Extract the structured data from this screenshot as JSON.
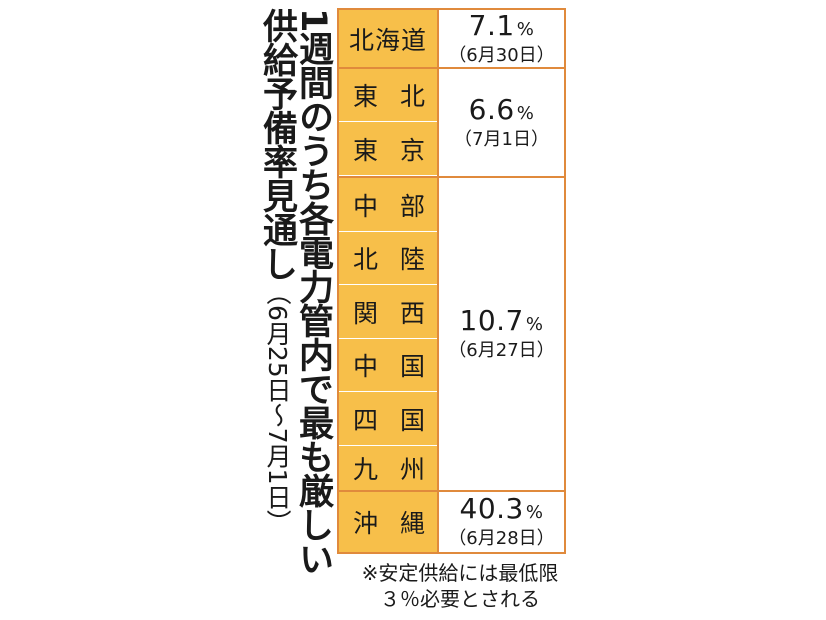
{
  "title": {
    "line1": "1週間のうち各電力管内で最も厳しい",
    "line2_main": "供給予備率見通し",
    "line2_sub": "（6月25日〜7月1日）"
  },
  "regions": [
    {
      "a": "北海道",
      "b": "",
      "solo": true
    },
    {
      "a": "東",
      "b": "北"
    },
    {
      "a": "東",
      "b": "京"
    },
    {
      "a": "中",
      "b": "部"
    },
    {
      "a": "北",
      "b": "陸"
    },
    {
      "a": "関",
      "b": "西"
    },
    {
      "a": "中",
      "b": "国"
    },
    {
      "a": "四",
      "b": "国"
    },
    {
      "a": "九",
      "b": "州"
    },
    {
      "a": "沖",
      "b": "縄"
    }
  ],
  "values": [
    {
      "pct": "7.1",
      "unit": "%",
      "date": "（6月30日）"
    },
    {
      "pct": "6.6",
      "unit": "%",
      "date": "（7月1日）"
    },
    {
      "pct": "10.7",
      "unit": "%",
      "date": "（6月27日）"
    },
    {
      "pct": "40.3",
      "unit": "%",
      "date": "（6月28日）"
    }
  ],
  "note": {
    "line1": "※安定供給には最低限",
    "line2": "３％必要とされる"
  },
  "colors": {
    "accent": "#e08a3c",
    "region_fill": "#f7bf4a"
  }
}
